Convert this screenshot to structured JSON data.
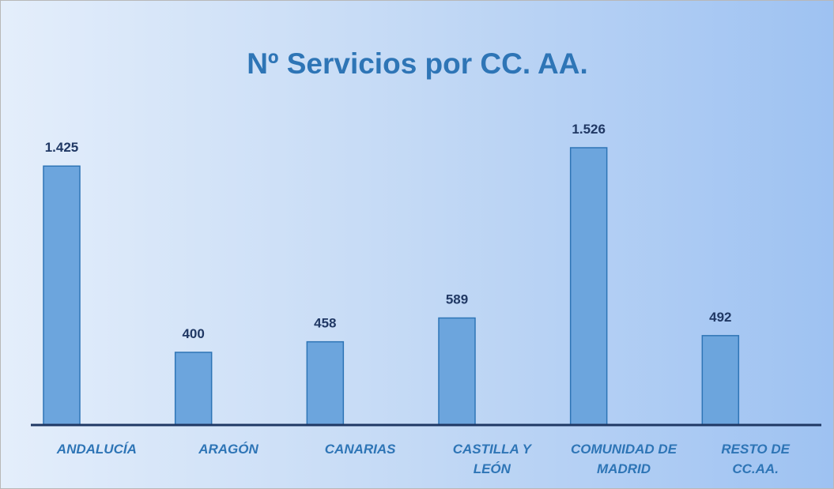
{
  "chart_data": {
    "type": "bar",
    "title": "Nº Servicios por CC. AA.",
    "categories": [
      "ANDALUCÍA",
      "ARAGÓN",
      "CANARIAS",
      "CASTILLA Y LEÓN",
      "COMUNIDAD DE MADRID",
      "RESTO DE CC.AA."
    ],
    "values": [
      1425,
      400,
      458,
      589,
      1526,
      492
    ],
    "value_labels": [
      "1.425",
      "400",
      "458",
      "589",
      "1.526",
      "492"
    ],
    "color": "#6ca5dd"
  }
}
